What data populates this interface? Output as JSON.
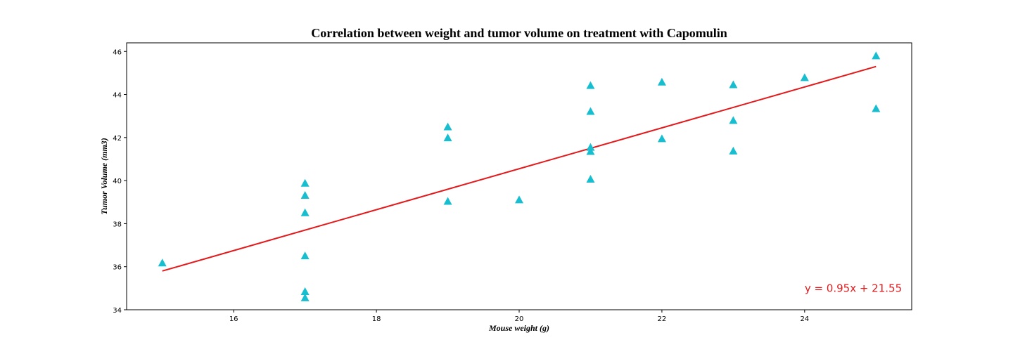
{
  "chart_data": {
    "type": "scatter",
    "title": "Correlation between weight and tumor volume on treatment with Capomulin",
    "xlabel": "Mouse weight (g)",
    "ylabel": "Tumor Volume (mm3)",
    "xlim": [
      14.5,
      25.5
    ],
    "ylim": [
      34.0,
      46.4
    ],
    "xticks": [
      16,
      18,
      20,
      22,
      24
    ],
    "yticks": [
      34,
      36,
      38,
      40,
      42,
      44,
      46
    ],
    "grid": false,
    "series": [
      {
        "marker": "triangle",
        "color": "#17becf",
        "points": [
          {
            "x": 15,
            "y": 36.18
          },
          {
            "x": 17,
            "y": 34.56
          },
          {
            "x": 17,
            "y": 34.85
          },
          {
            "x": 17,
            "y": 36.51
          },
          {
            "x": 17,
            "y": 38.51
          },
          {
            "x": 17,
            "y": 39.32
          },
          {
            "x": 17,
            "y": 39.88
          },
          {
            "x": 19,
            "y": 39.04
          },
          {
            "x": 19,
            "y": 41.99
          },
          {
            "x": 19,
            "y": 42.5
          },
          {
            "x": 20,
            "y": 39.11
          },
          {
            "x": 21,
            "y": 40.07
          },
          {
            "x": 21,
            "y": 41.36
          },
          {
            "x": 21,
            "y": 41.55
          },
          {
            "x": 21,
            "y": 43.22
          },
          {
            "x": 21,
            "y": 44.42
          },
          {
            "x": 22,
            "y": 41.95
          },
          {
            "x": 22,
            "y": 44.58
          },
          {
            "x": 23,
            "y": 41.38
          },
          {
            "x": 23,
            "y": 42.8
          },
          {
            "x": 23,
            "y": 44.46
          },
          {
            "x": 24,
            "y": 44.79
          },
          {
            "x": 25,
            "y": 43.35
          },
          {
            "x": 25,
            "y": 45.8
          }
        ]
      }
    ],
    "regression": {
      "slope": 0.95,
      "intercept": 21.55,
      "x_range": [
        15,
        25
      ],
      "color": "#e31a1c"
    },
    "annotation": {
      "text": "y = 0.95x + 21.55",
      "x": 24,
      "y": 35,
      "color": "#e31a1c"
    }
  }
}
